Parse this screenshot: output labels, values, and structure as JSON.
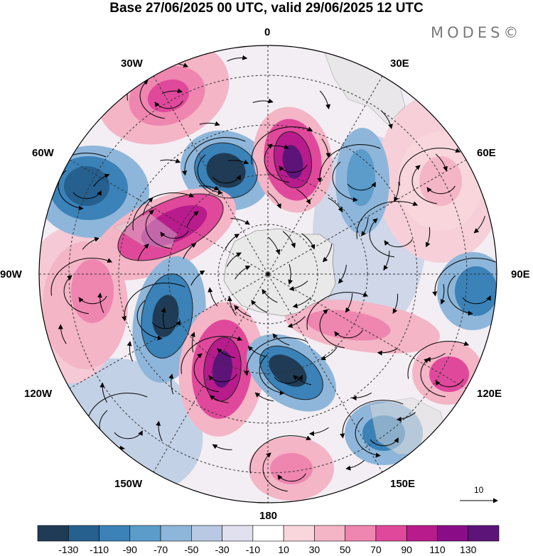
{
  "header": {
    "title": "Base 27/06/2025 00 UTC, valid 29/06/2025 12 UTC",
    "logo": "MODES©"
  },
  "longitude_labels": [
    "0",
    "30E",
    "60E",
    "90E",
    "120E",
    "150E",
    "180",
    "150W",
    "120W",
    "90W",
    "60W",
    "30W"
  ],
  "wind_reference": {
    "value": "10"
  },
  "colorbar": {
    "tick_labels": [
      "-130",
      "-110",
      "-90",
      "-70",
      "-50",
      "-30",
      "-10",
      "10",
      "30",
      "50",
      "70",
      "90",
      "110",
      "130"
    ],
    "colors": [
      "#1f3b55",
      "#25608f",
      "#3a82b8",
      "#5b9ccb",
      "#8eb6da",
      "#b9c8e3",
      "#e0e0ef",
      "#ffffff",
      "#f8d6dc",
      "#f4b5c6",
      "#ee86b0",
      "#e0499b",
      "#b81b8c",
      "#8a0d87",
      "#5c1479"
    ]
  },
  "map": {
    "center_lat": -90,
    "land_color": "#e9e9e9"
  }
}
